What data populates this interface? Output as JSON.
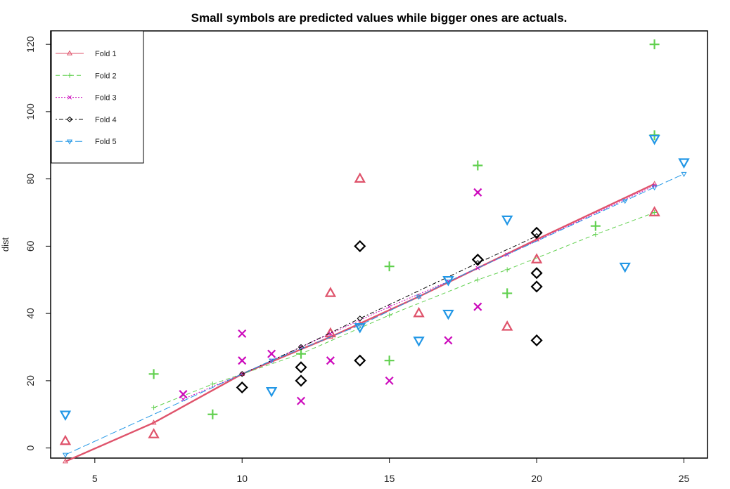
{
  "chart_data": {
    "type": "scatter",
    "title": "Small symbols are predicted values while bigger ones are actuals.",
    "xlabel": "",
    "ylabel": "dist",
    "xlim": [
      3.5,
      25.8
    ],
    "ylim": [
      -3,
      124
    ],
    "x_ticks": [
      5,
      10,
      15,
      20,
      25
    ],
    "y_ticks": [
      0,
      20,
      40,
      60,
      80,
      100,
      120
    ],
    "grid": false,
    "legend_position": "top-left",
    "series": [
      {
        "name": "Fold 1",
        "color": "#DF536B",
        "symbol": "triangle-up",
        "line_style": "solid",
        "predicted_line": [
          [
            4,
            -4
          ],
          [
            7,
            7.5
          ],
          [
            10,
            22
          ],
          [
            13,
            33
          ],
          [
            14,
            37
          ],
          [
            16,
            45
          ],
          [
            20,
            62
          ],
          [
            24,
            78.5
          ]
        ],
        "actual_points": [
          [
            4,
            2
          ],
          [
            7,
            4
          ],
          [
            13,
            46
          ],
          [
            13,
            34
          ],
          [
            14,
            80
          ],
          [
            16,
            40
          ],
          [
            19,
            36
          ],
          [
            20,
            56
          ],
          [
            24,
            70
          ]
        ]
      },
      {
        "name": "Fold 2",
        "color": "#61D04F",
        "symbol": "plus",
        "line_style": "dashed",
        "predicted_line": [
          [
            7,
            12
          ],
          [
            9,
            19
          ],
          [
            12,
            28
          ],
          [
            15,
            39.5
          ],
          [
            18,
            50
          ],
          [
            19,
            53
          ],
          [
            22,
            63.5
          ],
          [
            24,
            70
          ]
        ],
        "actual_points": [
          [
            7,
            22
          ],
          [
            9,
            10
          ],
          [
            12,
            28
          ],
          [
            15,
            54
          ],
          [
            15,
            26
          ],
          [
            18,
            84
          ],
          [
            19,
            46
          ],
          [
            22,
            66
          ],
          [
            24,
            120
          ],
          [
            24,
            93
          ]
        ]
      },
      {
        "name": "Fold 3",
        "color": "#CD0BBC",
        "symbol": "cross",
        "line_style": "dotted",
        "predicted_line": [
          [
            8,
            14.5
          ],
          [
            10,
            22
          ],
          [
            11,
            26
          ],
          [
            12,
            30
          ],
          [
            13,
            34
          ],
          [
            15,
            42
          ],
          [
            17,
            49.5
          ],
          [
            18,
            53.5
          ],
          [
            19,
            57.5
          ],
          [
            24,
            78
          ]
        ],
        "actual_points": [
          [
            8,
            16
          ],
          [
            10,
            34
          ],
          [
            10,
            26
          ],
          [
            11,
            28
          ],
          [
            12,
            14
          ],
          [
            13,
            26
          ],
          [
            15,
            20
          ],
          [
            17,
            32
          ],
          [
            18,
            42
          ],
          [
            18,
            76
          ]
        ]
      },
      {
        "name": "Fold 4",
        "color": "#000000",
        "symbol": "diamond",
        "line_style": "dotdash",
        "predicted_line": [
          [
            10,
            22
          ],
          [
            12,
            30
          ],
          [
            14,
            38.5
          ],
          [
            18,
            55
          ],
          [
            20,
            63
          ]
        ],
        "actual_points": [
          [
            10,
            18
          ],
          [
            12,
            24
          ],
          [
            12,
            20
          ],
          [
            14,
            60
          ],
          [
            14,
            26
          ],
          [
            18,
            56
          ],
          [
            20,
            64
          ],
          [
            20,
            52
          ],
          [
            20,
            48
          ],
          [
            20,
            32
          ]
        ]
      },
      {
        "name": "Fold 5",
        "color": "#2297E6",
        "symbol": "triangle-down",
        "line_style": "longdash",
        "predicted_line": [
          [
            4,
            -2
          ],
          [
            11,
            26
          ],
          [
            14,
            36.5
          ],
          [
            16,
            45
          ],
          [
            17,
            49.5
          ],
          [
            23,
            73.5
          ],
          [
            24,
            77.5
          ],
          [
            25,
            81.5
          ]
        ],
        "actual_points": [
          [
            4,
            10
          ],
          [
            11,
            17
          ],
          [
            14,
            36
          ],
          [
            16,
            32
          ],
          [
            17,
            50
          ],
          [
            17,
            40
          ],
          [
            19,
            68
          ],
          [
            23,
            54
          ],
          [
            24,
            92
          ],
          [
            25,
            85
          ]
        ]
      }
    ]
  }
}
